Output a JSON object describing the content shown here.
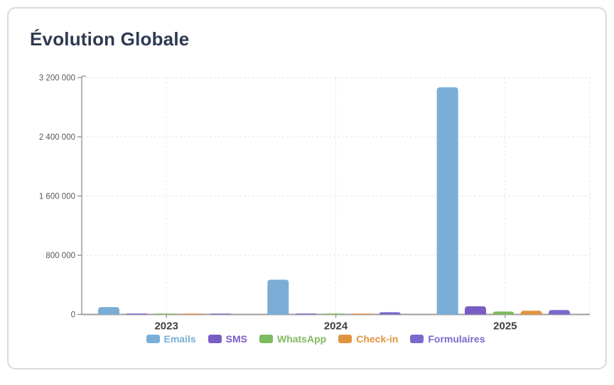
{
  "card": {
    "title": "Évolution Globale"
  },
  "chart_data": {
    "type": "bar",
    "title": "Évolution Globale",
    "categories": [
      "2023",
      "2024",
      "2025"
    ],
    "series": [
      {
        "name": "Emails",
        "color": "#7aaed6",
        "values": [
          100000,
          470000,
          3070000
        ]
      },
      {
        "name": "SMS",
        "color": "#7a5cc5",
        "values": [
          5000,
          8000,
          110000
        ]
      },
      {
        "name": "WhatsApp",
        "color": "#7eba5f",
        "values": [
          4000,
          12000,
          40000
        ]
      },
      {
        "name": "Check-in",
        "color": "#e2933e",
        "values": [
          4000,
          10000,
          50000
        ]
      },
      {
        "name": "Formulaires",
        "color": "#7b68cb",
        "values": [
          6000,
          30000,
          60000
        ]
      }
    ],
    "xlabel": "",
    "ylabel": "",
    "ylim": [
      0,
      3200000
    ],
    "yticks": [
      0,
      800000,
      1600000,
      2400000,
      3200000
    ],
    "ytick_labels": [
      "0",
      "800 000",
      "1 600 000",
      "2 400 000",
      "3 200 000"
    ],
    "grid": true,
    "legend_position": "bottom",
    "colors": {
      "axis": "#9e9e9e",
      "grid": "#e5e5e5",
      "tick_label": "#59595c",
      "category_label": "#3f3f3f",
      "title": "#2e3a51",
      "card_border": "#dadbdd"
    }
  }
}
